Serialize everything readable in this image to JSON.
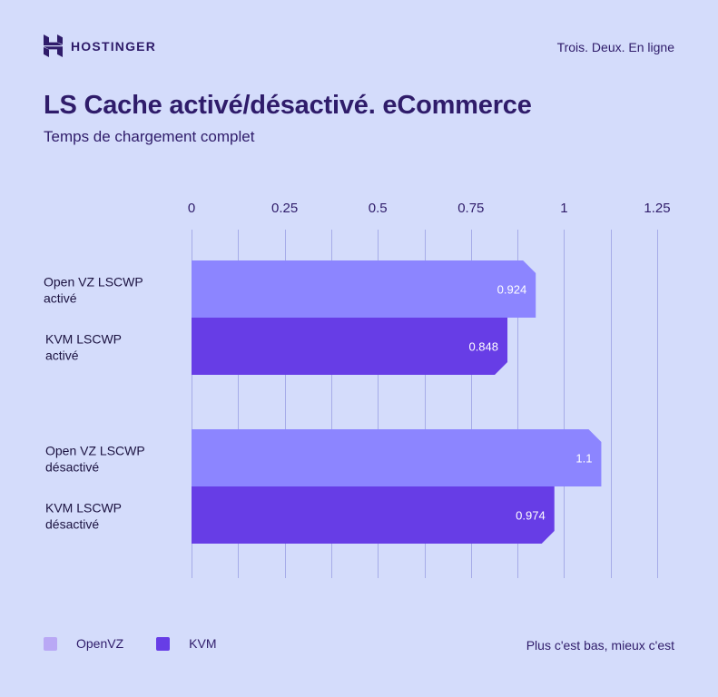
{
  "header": {
    "brand": "HOSTINGER",
    "tagline": "Trois. Deux. En ligne"
  },
  "chart_data": {
    "type": "bar",
    "orientation": "horizontal",
    "title": "LS Cache activé/désactivé. eCommerce",
    "subtitle": "Temps de chargement complet",
    "xlim": [
      0,
      1.25
    ],
    "x_ticks": [
      "0",
      "0.25",
      "0.5",
      "0.75",
      "1",
      "1.25"
    ],
    "grid": true,
    "bars": [
      {
        "label_lines": [
          "Open VZ LSCWP",
          "activé"
        ],
        "value": 0.924,
        "value_label": "0.924",
        "series": "OpenVZ"
      },
      {
        "label_lines": [
          "KVM LSCWP",
          "activé"
        ],
        "value": 0.848,
        "value_label": "0.848",
        "series": "KVM"
      },
      {
        "label_lines": [
          "Open VZ LSCWP",
          "désactivé"
        ],
        "value": 1.1,
        "value_label": "1.1",
        "series": "OpenVZ"
      },
      {
        "label_lines": [
          "KVM LSCWP",
          "désactivé"
        ],
        "value": 0.974,
        "value_label": "0.974",
        "series": "KVM"
      }
    ],
    "legend": [
      {
        "name": "OpenVZ",
        "color": "#8c85ff"
      },
      {
        "name": "KVM",
        "color": "#673de6"
      }
    ],
    "legend_swatch_colors": {
      "OpenVZ": "#b9a8f5",
      "KVM": "#673de6"
    },
    "note": "Plus c'est bas, mieux c'est"
  },
  "colors": {
    "background": "#d4dcfb",
    "text": "#2f1c6a",
    "gridline": "#a6ace8"
  }
}
